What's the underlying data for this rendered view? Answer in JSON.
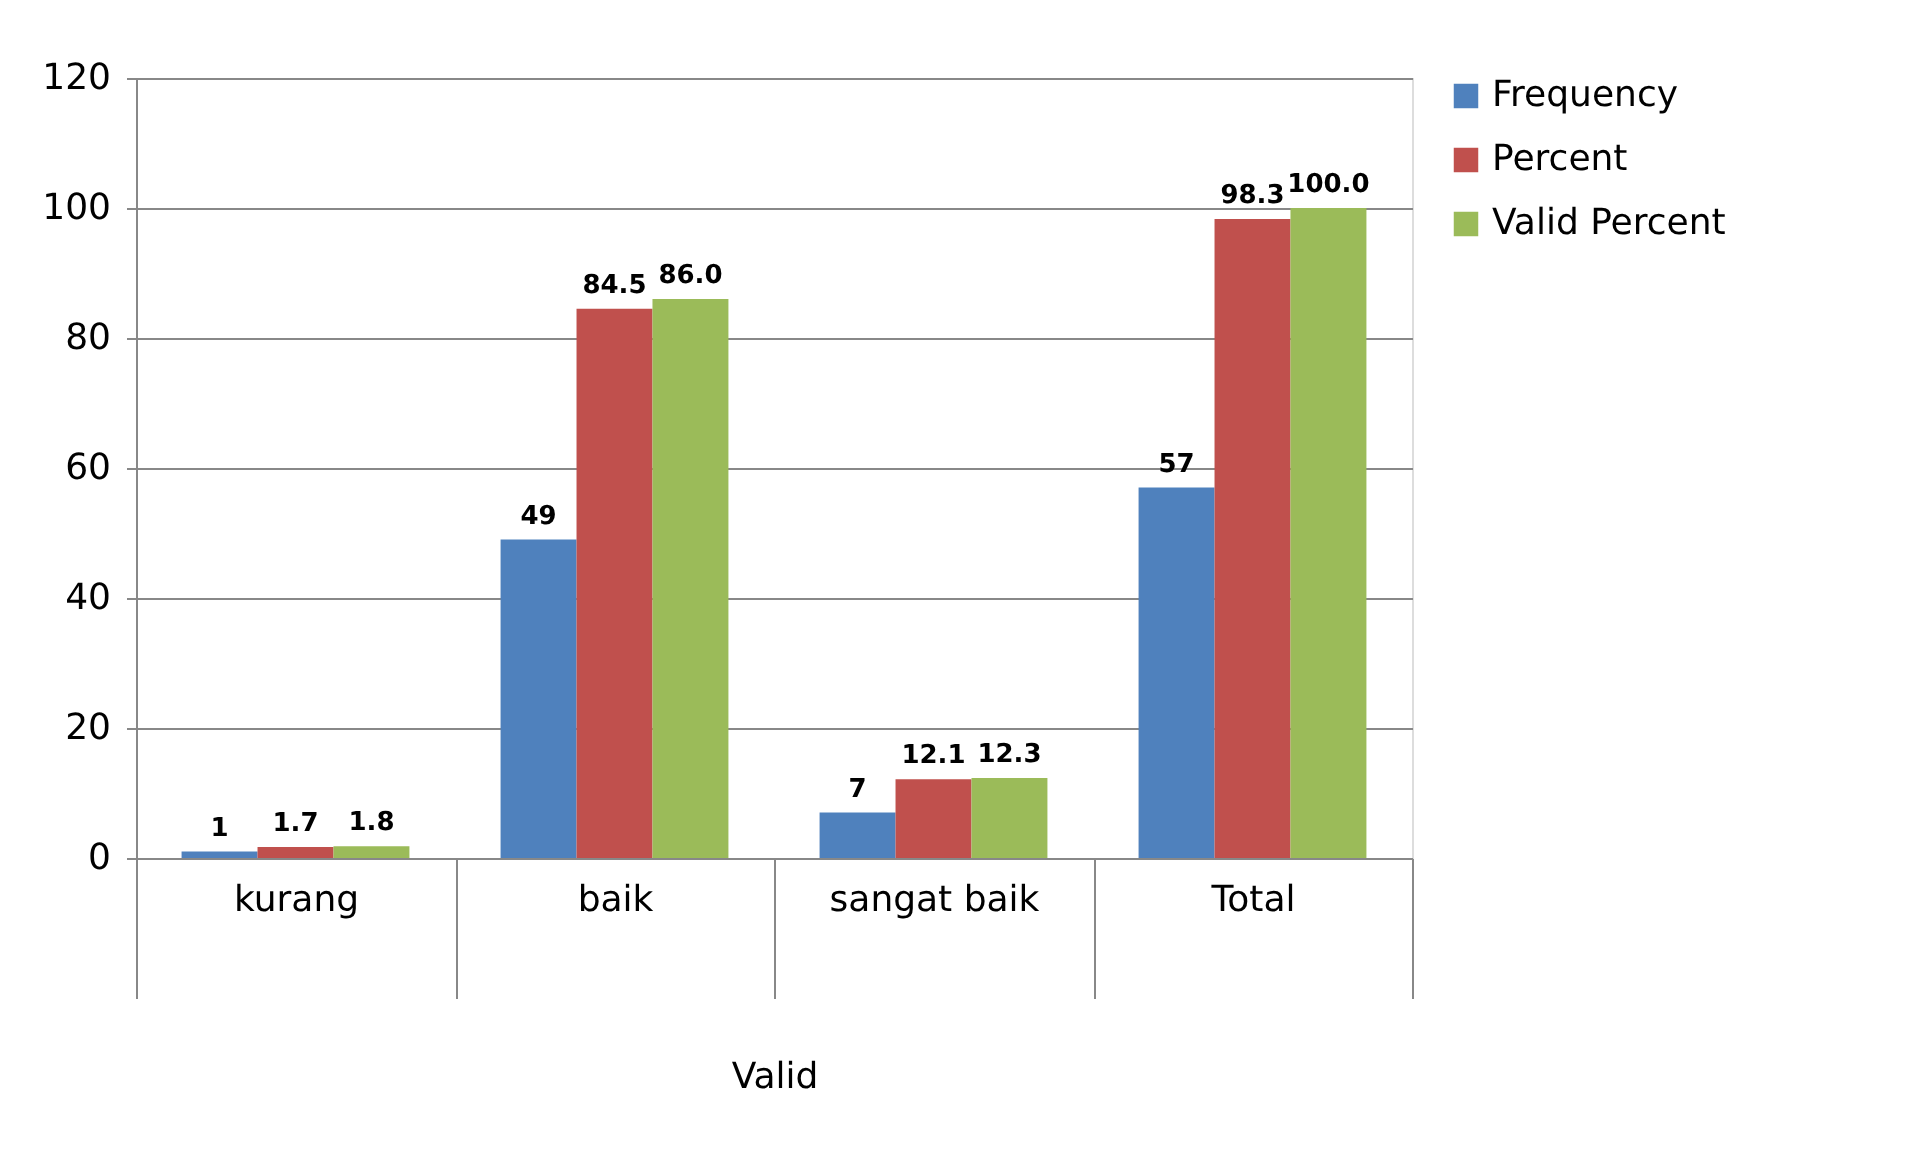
{
  "chart_data": {
    "type": "bar",
    "categories": [
      "kurang",
      "baik",
      "sangat baik",
      "Total"
    ],
    "xlabel": "Valid",
    "series": [
      {
        "name": "Frequency",
        "color": "#4f81bd",
        "values": [
          1,
          49,
          7,
          57
        ],
        "value_labels": [
          "1",
          "49",
          "7",
          "57"
        ]
      },
      {
        "name": "Percent",
        "color": "#c0504d",
        "values": [
          1.7,
          84.5,
          12.1,
          98.3
        ],
        "value_labels": [
          "1.7",
          "84.5",
          "12.1",
          "98.3"
        ]
      },
      {
        "name": "Valid Percent",
        "color": "#9bbb59",
        "values": [
          1.8,
          86.0,
          12.3,
          100.0
        ],
        "value_labels": [
          "1.8",
          "86.0",
          "12.3",
          "100.0"
        ]
      }
    ],
    "ylim": [
      0,
      120
    ],
    "yticks": [
      0,
      20,
      40,
      60,
      80,
      100,
      120
    ],
    "grid": "y",
    "legend": "right"
  }
}
